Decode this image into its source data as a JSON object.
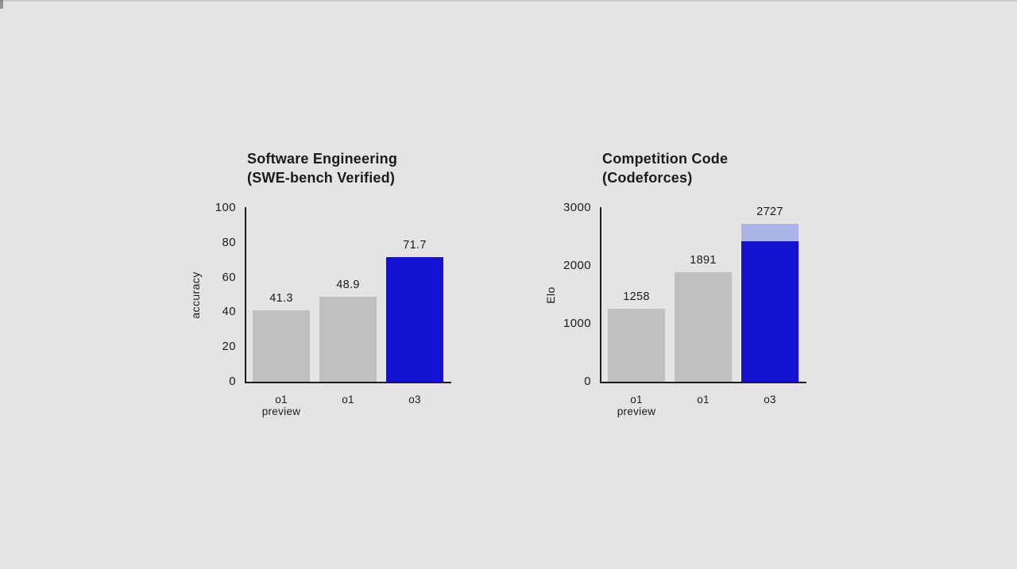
{
  "page": {
    "background_color": "#e5e4e2",
    "text_color": "#1b1b1b",
    "axis_color": "#1c1c1c"
  },
  "colors": {
    "bar_default": "#c0c0bf",
    "bar_highlight": "#1212d0",
    "bar_highlight_light": "#a9b5e6"
  },
  "chart_data": [
    {
      "type": "bar",
      "title": "Software Engineering (SWE-bench Verified)",
      "title_lines": [
        "Software Engineering",
        "(SWE-bench Verified)"
      ],
      "xlabel": "",
      "ylabel": "accuracy",
      "ylim": [
        0,
        100
      ],
      "yticks": [
        "0",
        "20",
        "40",
        "60",
        "80",
        "100"
      ],
      "ytick_values": [
        0,
        20,
        40,
        60,
        80,
        100
      ],
      "grid": false,
      "legend": null,
      "categories": [
        "o1 preview",
        "o1",
        "o3"
      ],
      "category_lines": [
        [
          "o1",
          "preview"
        ],
        [
          "o1"
        ],
        [
          "o3"
        ]
      ],
      "values": [
        41.3,
        48.9,
        71.7
      ],
      "value_labels": [
        "41.3",
        "48.9",
        "71.7"
      ],
      "highlight_index": 2
    },
    {
      "type": "bar",
      "title": "Competition Code (Codeforces)",
      "title_lines": [
        "Competition Code",
        "(Codeforces)"
      ],
      "xlabel": "",
      "ylabel": "Elo",
      "ylim": [
        0,
        3000
      ],
      "yticks": [
        "0",
        "1000",
        "2000",
        "3000"
      ],
      "ytick_values": [
        0,
        1000,
        2000,
        3000
      ],
      "grid": false,
      "legend": null,
      "categories": [
        "o1 preview",
        "o1",
        "o3"
      ],
      "category_lines": [
        [
          "o1",
          "preview"
        ],
        [
          "o1"
        ],
        [
          "o3"
        ]
      ],
      "values": [
        1258,
        1891,
        2727
      ],
      "value_labels": [
        "1258",
        "1891",
        "2727"
      ],
      "highlight_index": 2,
      "highlight_split": {
        "solid_to": 2430,
        "total": 2727
      }
    }
  ]
}
